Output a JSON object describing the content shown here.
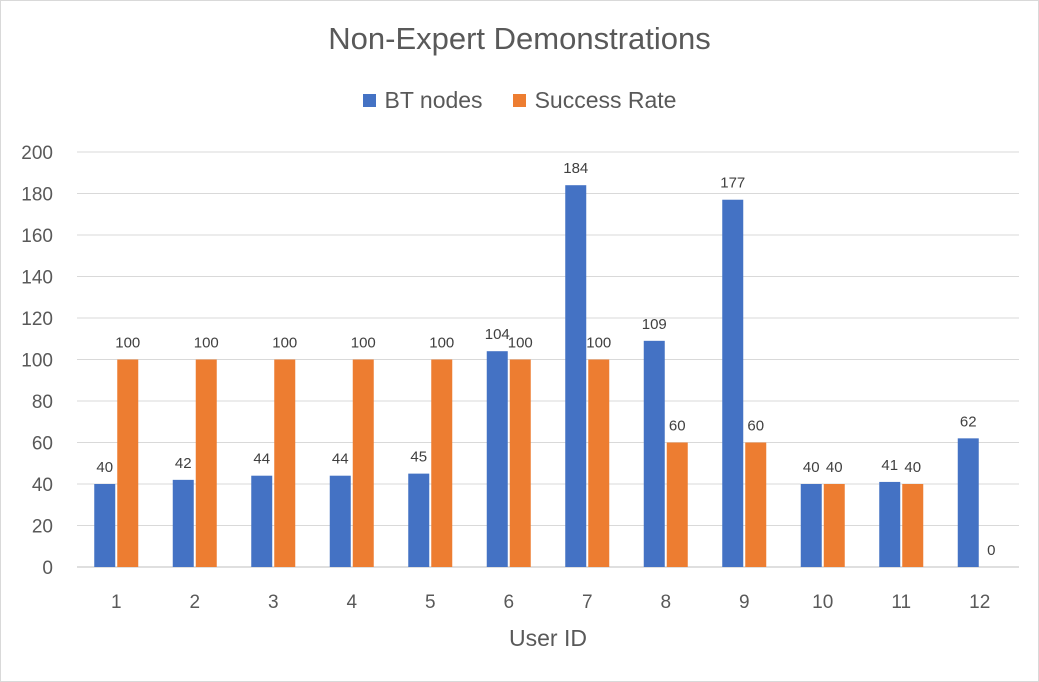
{
  "chart_data": {
    "type": "bar",
    "title": "Non-Expert Demonstrations",
    "xlabel": "User ID",
    "ylabel": "",
    "ylim": [
      0,
      200
    ],
    "yticks": [
      0,
      20,
      40,
      60,
      80,
      100,
      120,
      140,
      160,
      180,
      200
    ],
    "grid": true,
    "legend_position": "top",
    "categories": [
      "1",
      "2",
      "3",
      "4",
      "5",
      "6",
      "7",
      "8",
      "9",
      "10",
      "11",
      "12"
    ],
    "series": [
      {
        "name": "BT nodes",
        "color": "#4472c4",
        "values": [
          40,
          42,
          44,
          44,
          45,
          104,
          184,
          109,
          177,
          40,
          41,
          62
        ]
      },
      {
        "name": "Success Rate",
        "color": "#ed7d31",
        "values": [
          100,
          100,
          100,
          100,
          100,
          100,
          100,
          60,
          60,
          40,
          40,
          0
        ]
      }
    ],
    "data_labels": true
  }
}
